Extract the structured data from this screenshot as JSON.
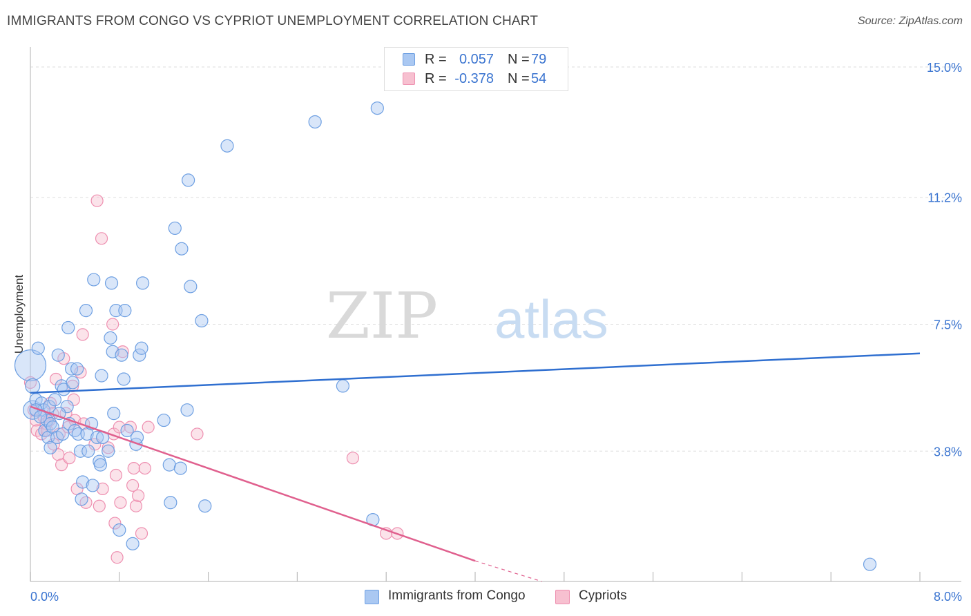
{
  "header": {
    "title": "IMMIGRANTS FROM CONGO VS CYPRIOT UNEMPLOYMENT CORRELATION CHART",
    "source": "Source: ZipAtlas.com"
  },
  "watermark": {
    "part1": "ZIP",
    "part2": "atlas"
  },
  "stats_box": {
    "rows": [
      {
        "r_label": "R =",
        "r_value": "0.057",
        "n_label": "N =",
        "n_value": "79",
        "color": "#aac8f2",
        "border": "#6d9fe2"
      },
      {
        "r_label": "R =",
        "r_value": "-0.378",
        "n_label": "N =",
        "n_value": "54",
        "color": "#f7c0d0",
        "border": "#ee8fb0"
      }
    ]
  },
  "legend": {
    "items": [
      {
        "label": "Immigrants from Congo",
        "color": "#aac8f2",
        "border": "#6d9fe2"
      },
      {
        "label": "Cypriots",
        "color": "#f7c0d0",
        "border": "#ee8fb0"
      }
    ]
  },
  "chart_data": {
    "type": "scatter",
    "title": "IMMIGRANTS FROM CONGO VS CYPRIOT UNEMPLOYMENT CORRELATION CHART",
    "xlabel": "",
    "ylabel": "Unemployment",
    "xlim": [
      0,
      8.0
    ],
    "ylim": [
      0,
      15.5
    ],
    "x_tick_labels": [
      "0.0%",
      "8.0%"
    ],
    "y_ticks": [
      3.8,
      7.5,
      11.2,
      15.0
    ],
    "y_tick_labels": [
      "3.8%",
      "7.5%",
      "11.2%",
      "15.0%"
    ],
    "grid": true,
    "legend_position": "bottom-center",
    "series": [
      {
        "name": "Immigrants from Congo",
        "color": "#6d9fe2",
        "fill": "#aac8f2",
        "trend_color": "#2f6fd0",
        "trend": {
          "x0": 0.0,
          "y0": 5.5,
          "x1": 8.0,
          "y1": 6.65
        },
        "points": [
          [
            0.0,
            6.3
          ],
          [
            0.02,
            5.0
          ],
          [
            0.02,
            5.7
          ],
          [
            0.05,
            5.3
          ],
          [
            0.07,
            6.8
          ],
          [
            0.1,
            5.2
          ],
          [
            0.12,
            5.0
          ],
          [
            0.13,
            4.4
          ],
          [
            0.15,
            4.7
          ],
          [
            0.16,
            4.2
          ],
          [
            0.17,
            5.1
          ],
          [
            0.18,
            3.9
          ],
          [
            0.18,
            4.6
          ],
          [
            0.2,
            4.5
          ],
          [
            0.22,
            5.3
          ],
          [
            0.24,
            4.2
          ],
          [
            0.25,
            6.6
          ],
          [
            0.28,
            5.7
          ],
          [
            0.29,
            4.3
          ],
          [
            0.3,
            5.6
          ],
          [
            0.33,
            5.1
          ],
          [
            0.34,
            7.4
          ],
          [
            0.35,
            4.6
          ],
          [
            0.37,
            6.2
          ],
          [
            0.38,
            5.8
          ],
          [
            0.4,
            4.4
          ],
          [
            0.42,
            6.2
          ],
          [
            0.43,
            4.3
          ],
          [
            0.45,
            3.8
          ],
          [
            0.46,
            2.4
          ],
          [
            0.47,
            2.9
          ],
          [
            0.5,
            7.9
          ],
          [
            0.51,
            4.3
          ],
          [
            0.52,
            3.8
          ],
          [
            0.55,
            4.6
          ],
          [
            0.56,
            2.8
          ],
          [
            0.57,
            8.8
          ],
          [
            0.6,
            4.2
          ],
          [
            0.62,
            3.5
          ],
          [
            0.63,
            3.4
          ],
          [
            0.64,
            6.0
          ],
          [
            0.65,
            4.2
          ],
          [
            0.7,
            3.8
          ],
          [
            0.72,
            7.1
          ],
          [
            0.73,
            8.7
          ],
          [
            0.74,
            6.7
          ],
          [
            0.75,
            4.9
          ],
          [
            0.77,
            7.9
          ],
          [
            0.8,
            1.5
          ],
          [
            0.82,
            6.6
          ],
          [
            0.84,
            5.9
          ],
          [
            0.85,
            7.9
          ],
          [
            0.87,
            4.4
          ],
          [
            0.92,
            1.1
          ],
          [
            0.95,
            4.0
          ],
          [
            0.96,
            4.2
          ],
          [
            0.98,
            6.6
          ],
          [
            1.0,
            6.8
          ],
          [
            1.01,
            8.7
          ],
          [
            1.2,
            4.7
          ],
          [
            1.25,
            3.4
          ],
          [
            1.26,
            2.3
          ],
          [
            1.3,
            10.3
          ],
          [
            1.35,
            3.3
          ],
          [
            1.36,
            9.7
          ],
          [
            1.41,
            5.0
          ],
          [
            1.42,
            11.7
          ],
          [
            1.44,
            8.6
          ],
          [
            1.54,
            7.6
          ],
          [
            1.57,
            2.2
          ],
          [
            1.77,
            12.7
          ],
          [
            2.56,
            13.4
          ],
          [
            2.81,
            5.7
          ],
          [
            3.08,
            1.8
          ],
          [
            3.12,
            13.8
          ],
          [
            7.55,
            0.5
          ],
          [
            0.05,
            5.0
          ],
          [
            0.09,
            4.8
          ],
          [
            0.26,
            4.9
          ]
        ],
        "point_sizes": [
          30,
          18,
          14,
          12,
          12,
          12,
          12,
          12,
          12,
          12,
          12,
          12,
          12,
          12,
          12,
          12,
          12,
          12,
          12,
          12,
          12,
          12,
          12,
          12,
          12,
          12,
          12,
          12,
          12,
          12,
          12,
          12,
          12,
          12,
          12,
          12,
          12,
          12,
          12,
          12,
          12,
          12,
          12,
          12,
          12,
          12,
          12,
          12,
          12,
          12,
          12,
          12,
          12,
          12,
          12,
          12,
          12,
          12,
          12,
          12,
          12,
          12,
          12,
          12,
          12,
          12,
          12,
          12,
          12,
          12,
          12,
          12,
          12,
          12,
          12,
          12,
          12,
          12,
          12
        ]
      },
      {
        "name": "Cypriots",
        "color": "#ee8fb0",
        "fill": "#f7c0d0",
        "trend_color": "#e0608e",
        "trend": {
          "x0": 0.0,
          "y0": 5.1,
          "x1": 4.0,
          "y1": 0.6
        },
        "trend_dashed_to": {
          "x": 4.6,
          "y": -0.1
        },
        "points": [
          [
            0.0,
            5.8
          ],
          [
            0.03,
            5.0
          ],
          [
            0.05,
            4.7
          ],
          [
            0.06,
            4.4
          ],
          [
            0.1,
            4.3
          ],
          [
            0.12,
            4.8
          ],
          [
            0.14,
            4.6
          ],
          [
            0.15,
            4.4
          ],
          [
            0.17,
            4.7
          ],
          [
            0.18,
            5.2
          ],
          [
            0.2,
            4.9
          ],
          [
            0.21,
            4.0
          ],
          [
            0.23,
            5.9
          ],
          [
            0.25,
            3.7
          ],
          [
            0.26,
            4.3
          ],
          [
            0.28,
            3.4
          ],
          [
            0.3,
            6.5
          ],
          [
            0.32,
            4.9
          ],
          [
            0.34,
            4.5
          ],
          [
            0.35,
            3.6
          ],
          [
            0.38,
            5.7
          ],
          [
            0.39,
            5.3
          ],
          [
            0.4,
            4.7
          ],
          [
            0.42,
            2.7
          ],
          [
            0.45,
            6.1
          ],
          [
            0.47,
            7.2
          ],
          [
            0.48,
            4.6
          ],
          [
            0.5,
            2.3
          ],
          [
            0.58,
            4.0
          ],
          [
            0.6,
            11.1
          ],
          [
            0.62,
            2.2
          ],
          [
            0.64,
            10.0
          ],
          [
            0.65,
            2.7
          ],
          [
            0.7,
            3.9
          ],
          [
            0.74,
            7.5
          ],
          [
            0.75,
            4.3
          ],
          [
            0.76,
            1.7
          ],
          [
            0.77,
            3.1
          ],
          [
            0.8,
            4.5
          ],
          [
            0.81,
            2.3
          ],
          [
            0.83,
            6.7
          ],
          [
            0.9,
            4.5
          ],
          [
            0.92,
            2.8
          ],
          [
            0.93,
            3.3
          ],
          [
            0.95,
            2.2
          ],
          [
            0.97,
            2.5
          ],
          [
            1.0,
            1.4
          ],
          [
            1.03,
            3.3
          ],
          [
            1.06,
            4.5
          ],
          [
            1.5,
            4.3
          ],
          [
            2.9,
            3.6
          ],
          [
            3.2,
            1.4
          ],
          [
            3.3,
            1.4
          ],
          [
            0.78,
            0.7
          ]
        ]
      }
    ]
  }
}
